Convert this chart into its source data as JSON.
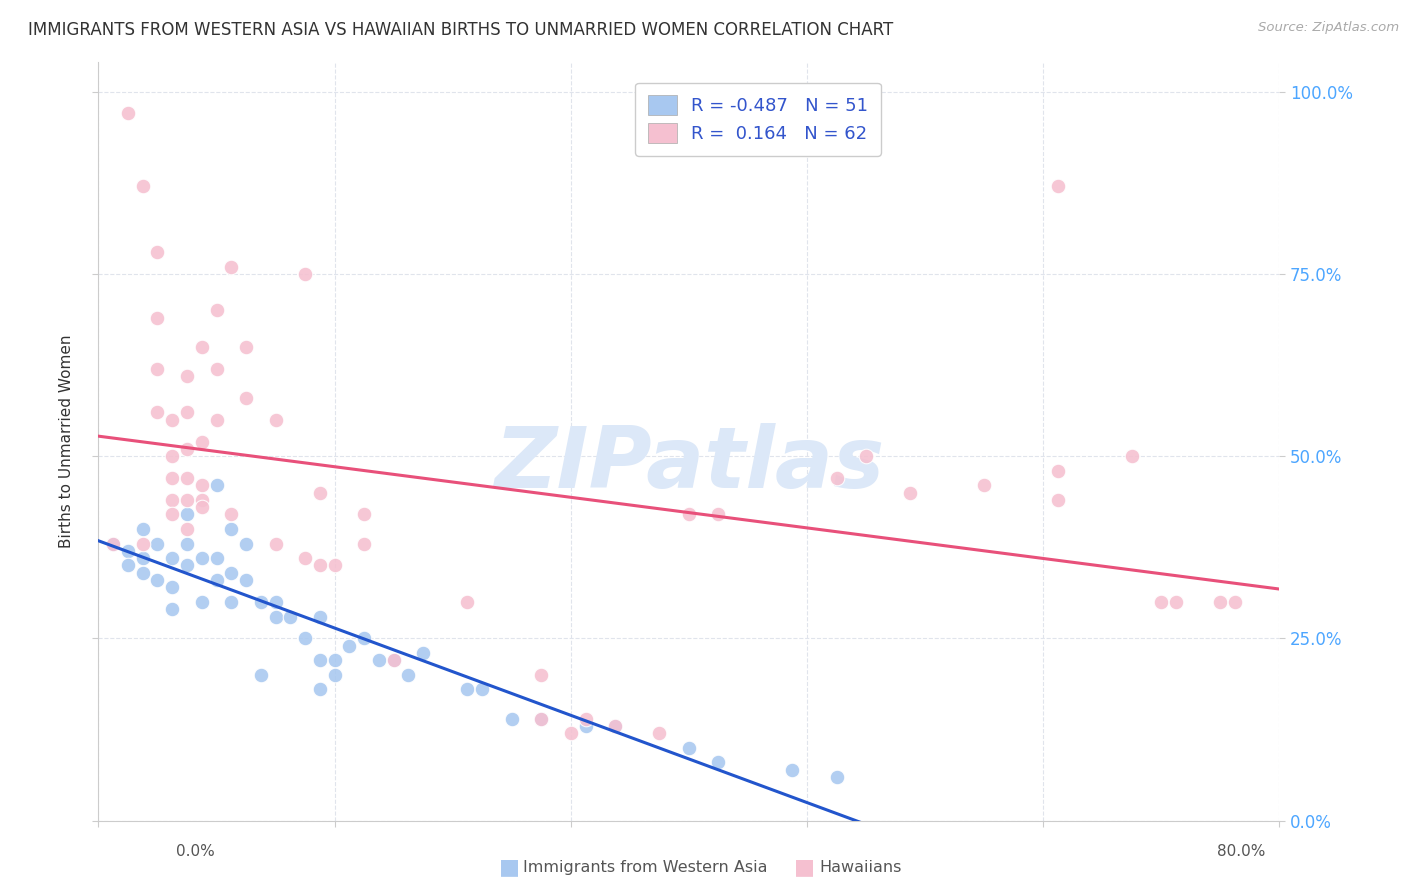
{
  "title": "IMMIGRANTS FROM WESTERN ASIA VS HAWAIIAN BIRTHS TO UNMARRIED WOMEN CORRELATION CHART",
  "source": "Source: ZipAtlas.com",
  "ylabel": "Births to Unmarried Women",
  "legend_r_blue": "-0.487",
  "legend_n_blue": "51",
  "legend_r_pink": " 0.164",
  "legend_n_pink": "62",
  "blue_color": "#a8c8f0",
  "pink_color": "#f5c0d0",
  "blue_line_color": "#2255cc",
  "pink_line_color": "#e8507a",
  "watermark": "ZIPatlas",
  "watermark_color": "#dce8f8",
  "blue_dots": [
    [
      0.1,
      38
    ],
    [
      0.2,
      37
    ],
    [
      0.2,
      35
    ],
    [
      0.3,
      36
    ],
    [
      0.3,
      34
    ],
    [
      0.3,
      40
    ],
    [
      0.4,
      38
    ],
    [
      0.4,
      33
    ],
    [
      0.5,
      36
    ],
    [
      0.5,
      32
    ],
    [
      0.5,
      29
    ],
    [
      0.6,
      42
    ],
    [
      0.6,
      38
    ],
    [
      0.6,
      35
    ],
    [
      0.7,
      36
    ],
    [
      0.7,
      30
    ],
    [
      0.8,
      46
    ],
    [
      0.8,
      36
    ],
    [
      0.8,
      33
    ],
    [
      0.9,
      40
    ],
    [
      0.9,
      34
    ],
    [
      0.9,
      30
    ],
    [
      1.0,
      38
    ],
    [
      1.0,
      33
    ],
    [
      1.1,
      30
    ],
    [
      1.1,
      20
    ],
    [
      1.2,
      30
    ],
    [
      1.2,
      28
    ],
    [
      1.3,
      28
    ],
    [
      1.4,
      25
    ],
    [
      1.5,
      28
    ],
    [
      1.5,
      22
    ],
    [
      1.5,
      18
    ],
    [
      1.6,
      22
    ],
    [
      1.6,
      20
    ],
    [
      1.7,
      24
    ],
    [
      1.8,
      25
    ],
    [
      1.9,
      22
    ],
    [
      2.0,
      22
    ],
    [
      2.1,
      20
    ],
    [
      2.2,
      23
    ],
    [
      2.5,
      18
    ],
    [
      2.6,
      18
    ],
    [
      2.8,
      14
    ],
    [
      3.0,
      14
    ],
    [
      3.3,
      13
    ],
    [
      3.5,
      13
    ],
    [
      4.0,
      10
    ],
    [
      4.2,
      8
    ],
    [
      4.7,
      7
    ],
    [
      5.0,
      6
    ]
  ],
  "pink_dots": [
    [
      0.1,
      38
    ],
    [
      0.2,
      97
    ],
    [
      0.3,
      38
    ],
    [
      0.3,
      87
    ],
    [
      0.4,
      78
    ],
    [
      0.4,
      69
    ],
    [
      0.4,
      62
    ],
    [
      0.4,
      56
    ],
    [
      0.5,
      55
    ],
    [
      0.5,
      50
    ],
    [
      0.5,
      47
    ],
    [
      0.5,
      44
    ],
    [
      0.5,
      42
    ],
    [
      0.6,
      61
    ],
    [
      0.6,
      56
    ],
    [
      0.6,
      51
    ],
    [
      0.6,
      47
    ],
    [
      0.6,
      44
    ],
    [
      0.6,
      40
    ],
    [
      0.7,
      65
    ],
    [
      0.7,
      52
    ],
    [
      0.7,
      46
    ],
    [
      0.7,
      44
    ],
    [
      0.7,
      43
    ],
    [
      0.8,
      70
    ],
    [
      0.8,
      62
    ],
    [
      0.8,
      55
    ],
    [
      0.9,
      76
    ],
    [
      0.9,
      42
    ],
    [
      1.0,
      65
    ],
    [
      1.0,
      58
    ],
    [
      1.2,
      55
    ],
    [
      1.2,
      38
    ],
    [
      1.4,
      75
    ],
    [
      1.4,
      36
    ],
    [
      1.5,
      45
    ],
    [
      1.5,
      35
    ],
    [
      1.6,
      35
    ],
    [
      1.8,
      42
    ],
    [
      1.8,
      38
    ],
    [
      2.0,
      22
    ],
    [
      2.5,
      30
    ],
    [
      3.0,
      20
    ],
    [
      3.0,
      14
    ],
    [
      3.2,
      12
    ],
    [
      3.3,
      14
    ],
    [
      3.5,
      13
    ],
    [
      3.8,
      12
    ],
    [
      4.0,
      42
    ],
    [
      4.2,
      42
    ],
    [
      5.0,
      47
    ],
    [
      5.2,
      50
    ],
    [
      5.5,
      45
    ],
    [
      6.0,
      46
    ],
    [
      6.5,
      87
    ],
    [
      6.5,
      48
    ],
    [
      6.5,
      44
    ],
    [
      7.0,
      50
    ],
    [
      7.2,
      30
    ],
    [
      7.3,
      30
    ],
    [
      7.6,
      30
    ],
    [
      7.7,
      30
    ]
  ],
  "xmin": 0.0,
  "xmax": 8.0,
  "ymin": 0.0,
  "ymax": 104.0,
  "xtick_vals": [
    0.0,
    1.6,
    3.2,
    4.8,
    6.4,
    8.0
  ],
  "ytick_vals": [
    0.0,
    25.0,
    50.0,
    75.0,
    100.0
  ],
  "grid_color": "#e0e4ec",
  "background_color": "#ffffff",
  "text_color": "#333333",
  "right_tick_color": "#4da6ff",
  "source_color": "#aaaaaa",
  "bottom_legend_color": "#555555",
  "legend_text_color": "#3355cc"
}
